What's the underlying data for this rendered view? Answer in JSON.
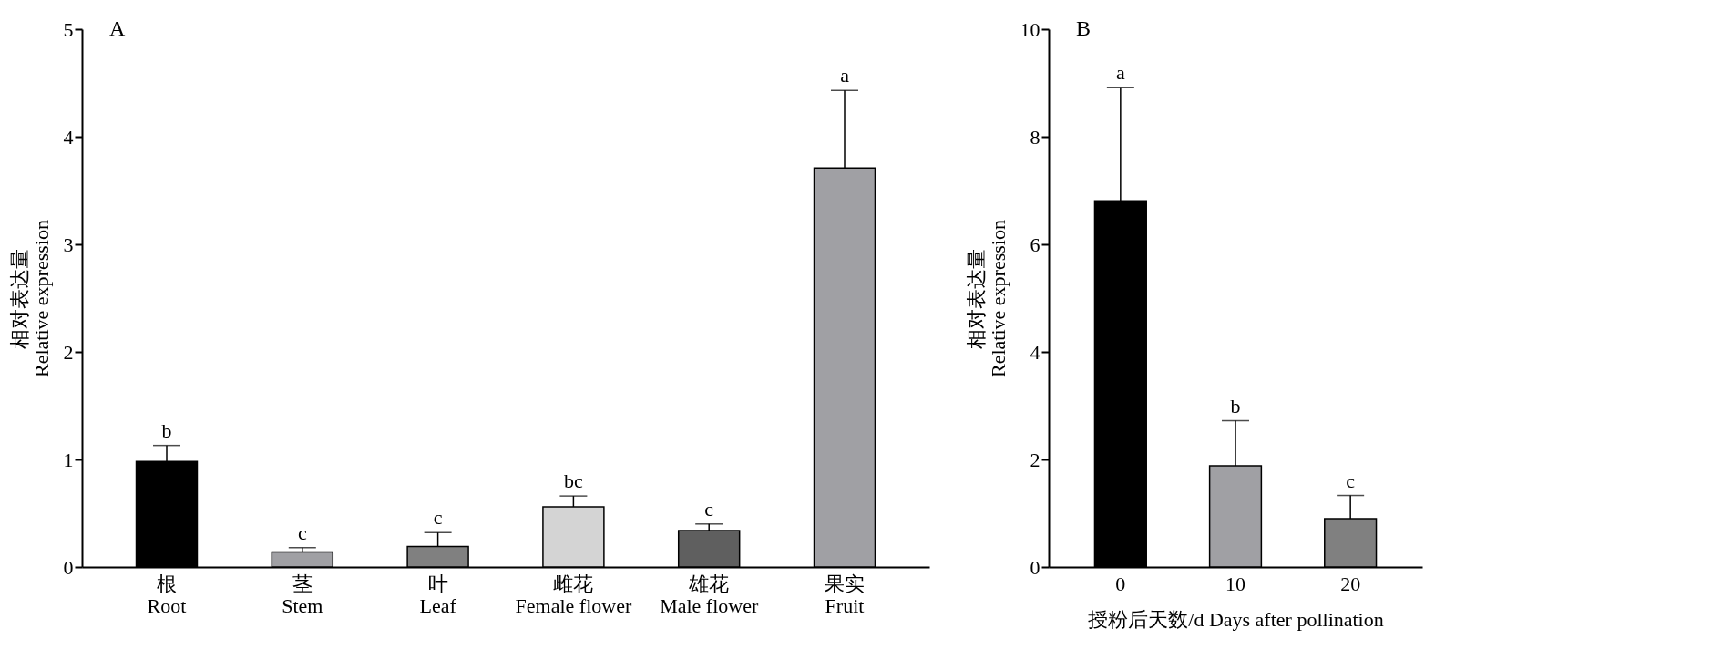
{
  "chart_data": [
    {
      "type": "bar",
      "title": "A",
      "ylabel": "相对表达量\nRelative expression",
      "categories": [
        "根\nRoot",
        "茎\nStem",
        "叶\nLeaf",
        "雌花\nFemale flower",
        "雄花\nMale flower",
        "果实\nFruit"
      ],
      "values": [
        0.98,
        0.14,
        0.19,
        0.56,
        0.34,
        3.71
      ],
      "colors": [
        "#000000",
        "#a0a0a4",
        "#808080",
        "#d4d4d4",
        "#5f5f5f",
        "#a0a0a4"
      ],
      "errors": [
        [
          0.98,
          1.13
        ],
        [
          0.14,
          0.18
        ],
        [
          0.19,
          0.32
        ],
        [
          0.56,
          0.66
        ],
        [
          0.34,
          0.4
        ],
        [
          3.71,
          4.43
        ]
      ],
      "ylim": [
        0,
        5
      ],
      "yticks": [
        0,
        1,
        2,
        3,
        4,
        5
      ],
      "grid": false,
      "annotations": [
        "b",
        "c",
        "c",
        "bc",
        "c",
        "a"
      ]
    },
    {
      "type": "bar",
      "title": "B",
      "ylabel": "相对表达量\nRelative expression",
      "xlabel": "授粉后天数/d Days after pollination",
      "categories": [
        "0",
        "10",
        "20"
      ],
      "values": [
        6.81,
        1.88,
        0.9
      ],
      "colors": [
        "#000000",
        "#a0a0a4",
        "#808080"
      ],
      "errors": [
        [
          6.81,
          8.92
        ],
        [
          1.88,
          2.72
        ],
        [
          0.9,
          1.33
        ]
      ],
      "ylim": [
        0,
        10
      ],
      "yticks": [
        0,
        2,
        4,
        6,
        8,
        10
      ],
      "grid": false,
      "annotations": [
        "a",
        "b",
        "c"
      ]
    }
  ]
}
